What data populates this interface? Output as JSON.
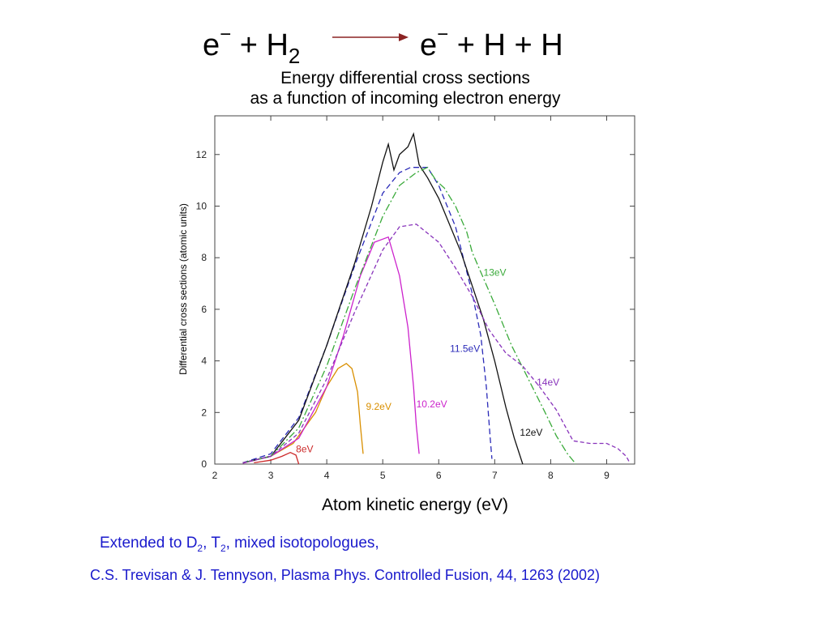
{
  "header": {
    "reaction": {
      "lhs_e": "e",
      "lhs_e_charge": "−",
      "lhs_plus": "+ H",
      "lhs_sub": "2",
      "rhs_e": "e",
      "rhs_e_charge": "−",
      "rhs_rest": "+ H + H"
    },
    "subtitle_line1": "Energy differential cross sections",
    "subtitle_line2": "as a function of incoming electron energy",
    "arrow_color": "#8b2323"
  },
  "chart_data": {
    "type": "line",
    "xlabel": "Atom kinetic energy (eV)",
    "ylabel": "Differential cross sections (atomic units)",
    "xlim": [
      2,
      9.5
    ],
    "ylim": [
      0,
      13.5
    ],
    "xticks": [
      2,
      3,
      4,
      5,
      6,
      7,
      8,
      9
    ],
    "yticks": [
      0,
      2,
      4,
      6,
      8,
      10,
      12
    ],
    "grid": false,
    "series": [
      {
        "name": "8eV",
        "color": "#cc2a2a",
        "dash": "",
        "label_at": [
          3.45,
          0.45
        ],
        "x": [
          2.7,
          3.0,
          3.2,
          3.35,
          3.45,
          3.5
        ],
        "y": [
          0.05,
          0.15,
          0.3,
          0.45,
          0.35,
          0.0
        ]
      },
      {
        "name": "9.2eV",
        "color": "#d98f00",
        "dash": "",
        "label_at": [
          4.7,
          2.1
        ],
        "x": [
          2.5,
          3.0,
          3.4,
          3.8,
          4.0,
          4.2,
          4.35,
          4.45,
          4.55,
          4.6,
          4.65
        ],
        "y": [
          0.05,
          0.3,
          0.8,
          2.0,
          3.0,
          3.7,
          3.9,
          3.7,
          2.8,
          1.5,
          0.4
        ]
      },
      {
        "name": "10.2eV",
        "color": "#cc22cc",
        "dash": "",
        "label_at": [
          5.6,
          2.2
        ],
        "x": [
          2.5,
          3.0,
          3.5,
          4.0,
          4.3,
          4.6,
          4.85,
          5.1,
          5.3,
          5.45,
          5.55,
          5.6,
          5.65
        ],
        "y": [
          0.03,
          0.3,
          1.0,
          3.0,
          5.0,
          7.3,
          8.6,
          8.8,
          7.3,
          5.3,
          3.0,
          1.5,
          0.4
        ]
      },
      {
        "name": "11.5eV",
        "color": "#2a2ab8",
        "dash": "7,4",
        "label_at": [
          6.2,
          4.35
        ],
        "x": [
          2.5,
          3.0,
          3.5,
          4.0,
          4.5,
          5.0,
          5.3,
          5.5,
          5.8,
          6.0,
          6.3,
          6.6,
          6.75,
          6.85,
          6.92,
          6.95
        ],
        "y": [
          0.05,
          0.4,
          1.8,
          4.6,
          7.7,
          10.5,
          11.3,
          11.5,
          11.5,
          10.8,
          9.2,
          6.6,
          5.0,
          3.0,
          1.0,
          0.2
        ]
      },
      {
        "name": "12eV",
        "color": "#111111",
        "dash": "",
        "label_at": [
          7.45,
          1.1
        ],
        "x": [
          2.5,
          3.0,
          3.5,
          4.0,
          4.5,
          4.8,
          5.0,
          5.1,
          5.2,
          5.3,
          5.45,
          5.55,
          5.65,
          5.8,
          6.0,
          6.4,
          6.8,
          7.0,
          7.2,
          7.35,
          7.5
        ],
        "y": [
          0.05,
          0.3,
          1.7,
          4.6,
          7.8,
          10.0,
          11.7,
          12.4,
          11.4,
          12.0,
          12.3,
          12.8,
          11.6,
          11.1,
          10.3,
          8.2,
          5.6,
          4.0,
          2.2,
          1.0,
          0.0
        ]
      },
      {
        "name": "13eV",
        "color": "#3aaa3a",
        "dash": "9,3,2,3",
        "label_at": [
          6.8,
          7.3
        ],
        "x": [
          2.5,
          3.0,
          3.5,
          4.0,
          4.5,
          5.0,
          5.3,
          5.6,
          5.8,
          5.95,
          6.1,
          6.3,
          6.5,
          6.6,
          6.8,
          7.0,
          7.3,
          7.6,
          7.9,
          8.1,
          8.3,
          8.45
        ],
        "y": [
          0.05,
          0.3,
          1.4,
          3.8,
          6.8,
          9.6,
          10.8,
          11.3,
          11.5,
          11.0,
          10.7,
          10.0,
          9.0,
          8.2,
          7.2,
          6.2,
          4.6,
          3.3,
          2.0,
          1.1,
          0.4,
          0.0
        ]
      },
      {
        "name": "14eV",
        "color": "#8833bb",
        "dash": "5,3",
        "label_at": [
          7.75,
          3.05
        ],
        "x": [
          2.5,
          3.0,
          3.5,
          4.0,
          4.5,
          5.0,
          5.3,
          5.6,
          6.0,
          6.3,
          6.6,
          6.9,
          7.2,
          7.5,
          7.8,
          8.1,
          8.4,
          8.7,
          9.0,
          9.2,
          9.35,
          9.4
        ],
        "y": [
          0.05,
          0.3,
          1.2,
          3.3,
          5.9,
          8.3,
          9.2,
          9.3,
          8.6,
          7.6,
          6.5,
          5.2,
          4.3,
          3.8,
          3.0,
          2.1,
          0.9,
          0.8,
          0.8,
          0.6,
          0.3,
          0.1
        ]
      }
    ]
  },
  "footer": {
    "ext_text": "Extended to D",
    "ext_sub1": "2",
    "ext_mid": ", T",
    "ext_sub2": "2",
    "ext_end": ", mixed isotopologues,",
    "citation": "C.S. Trevisan & J. Tennyson, Plasma Phys. Controlled Fusion, 44, 1263 (2002)",
    "text_color": "#1a1acc"
  }
}
